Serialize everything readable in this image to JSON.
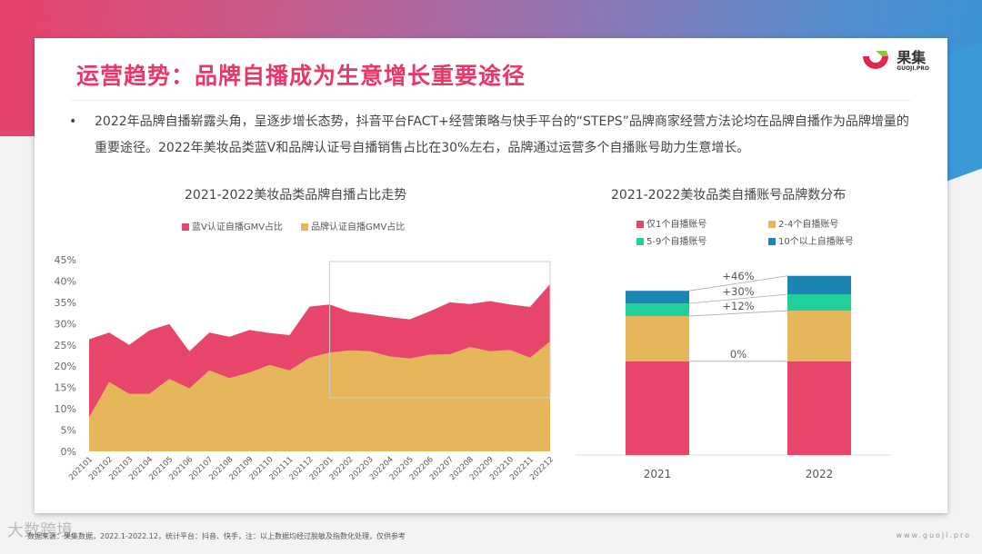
{
  "header": {
    "title": "运营趋势：品牌自播成为生意增长重要途径",
    "logo_name": "果集",
    "logo_sub": "GUOJI.PRO"
  },
  "body": {
    "bullet": "•",
    "text": "2022年品牌自播崭露头角，呈逐步增长态势，抖音平台FACT+经营策略与快手平台的“STEPS”品牌商家经营方法论均在品牌自播作为品牌增量的重要途径。2022年美妆品类蓝V和品牌认证号自播销售占比在30%左右，品牌通过运营多个自播账号助力生意增长。"
  },
  "footer": {
    "source": "数据来源：果集数据，2022.1-2022.12，统计平台：抖音、快手，注：以上数据均经过脱敏及指数化处理，仅供参考",
    "site": "www.guoji.pro",
    "watermark": "大数跨境"
  },
  "chart_data": [
    {
      "type": "area",
      "stacked": true,
      "title": "2021-2022美妆品类品牌自播占比走势",
      "legend_position": "top",
      "grid": false,
      "categories": [
        "202101",
        "202102",
        "202103",
        "202104",
        "202105",
        "202106",
        "202107",
        "202108",
        "202109",
        "202110",
        "202111",
        "202112",
        "202201",
        "202202",
        "202203",
        "202204",
        "202205",
        "202206",
        "202207",
        "202208",
        "202209",
        "202210",
        "202211",
        "202212"
      ],
      "ylim": [
        0,
        45
      ],
      "yticks": [
        "0%",
        "5%",
        "10%",
        "15%",
        "20%",
        "25%",
        "30%",
        "35%",
        "40%",
        "45%"
      ],
      "series": [
        {
          "name": "品牌认证自播GMV占比",
          "color": "#e6b75a",
          "values": [
            8,
            16.3,
            13.5,
            13.5,
            17,
            14.8,
            19,
            17.2,
            18.5,
            20.3,
            19,
            22,
            23.2,
            23.7,
            23.5,
            22.3,
            21.8,
            22.7,
            22.8,
            24.5,
            23.5,
            23.8,
            22,
            25.8
          ]
        },
        {
          "name": "蓝V认证自播GMV占比",
          "color": "#e8456b",
          "values": [
            18.3,
            11.6,
            11.5,
            14.9,
            12.9,
            8.7,
            8.9,
            9.7,
            10,
            7.5,
            8.3,
            12,
            11.3,
            9.1,
            8.7,
            9.2,
            9.2,
            10.2,
            12.2,
            10.1,
            11.8,
            10.7,
            11.9,
            13.5
          ]
        }
      ],
      "legend_order": [
        "蓝V认证自播GMV占比",
        "品牌认证自播GMV占比"
      ]
    },
    {
      "type": "bar",
      "stacked": true,
      "title": "2021-2022美妆品类自播账号品牌数分布",
      "legend_position": "top",
      "grid": false,
      "categories": [
        "2021",
        "2022"
      ],
      "series": [
        {
          "name": "仅1个自播账号",
          "color": "#e8456b",
          "values": [
            57,
            57
          ],
          "change": "0%"
        },
        {
          "name": "2-4个自播账号",
          "color": "#e6b75a",
          "values": [
            27.5,
            30.8
          ],
          "change": "+12%"
        },
        {
          "name": "5-9个自播账号",
          "color": "#22cf98",
          "values": [
            7.7,
            10
          ],
          "change": "+30%"
        },
        {
          "name": "10个以上自播账号",
          "color": "#1b86b3",
          "values": [
            7.7,
            11.2
          ],
          "change": "+46%"
        }
      ]
    }
  ]
}
